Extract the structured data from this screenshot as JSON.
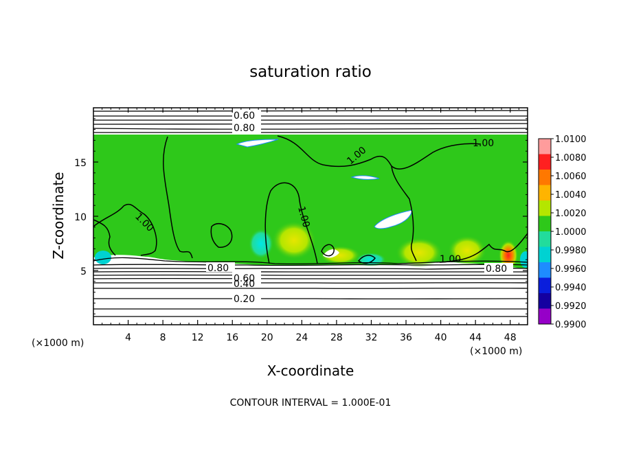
{
  "chart_data": {
    "type": "heatmap",
    "title": "saturation ratio",
    "xlabel": "X-coordinate",
    "ylabel": "Z-coordinate",
    "x_unit": "(×1000 m)",
    "xlim": [
      0,
      50
    ],
    "ylim": [
      0,
      20
    ],
    "x_ticks": [
      4,
      8,
      12,
      16,
      20,
      24,
      28,
      32,
      36,
      40,
      44,
      48
    ],
    "y_ticks": [
      5,
      10,
      15
    ],
    "colorbar": {
      "range": [
        0.99,
        1.01
      ],
      "ticks": [
        "1.0100",
        "1.0080",
        "1.0060",
        "1.0040",
        "1.0020",
        "1.0000",
        "0.9980",
        "0.9960",
        "0.9940",
        "0.9920",
        "0.9900"
      ],
      "colors": [
        "#ff9c9c",
        "#ff2020",
        "#ff7800",
        "#ffb400",
        "#b4e600",
        "#2ec81a",
        "#22dc9c",
        "#00d2d2",
        "#1e8cff",
        "#0a1edc",
        "#1400a0",
        "#9600c8"
      ]
    },
    "contour_labels": [
      "0.60",
      "0.80",
      "1.00",
      "1.00",
      "1.00",
      "1.00",
      "1.00",
      "0.60",
      "0.80",
      "0.40",
      "0.20",
      "0.80"
    ],
    "contour_interval_text": "CONTOUR INTERVAL = 1.000E-01",
    "colors": {
      "field": "#2ec81a",
      "contour": "#000000"
    }
  }
}
